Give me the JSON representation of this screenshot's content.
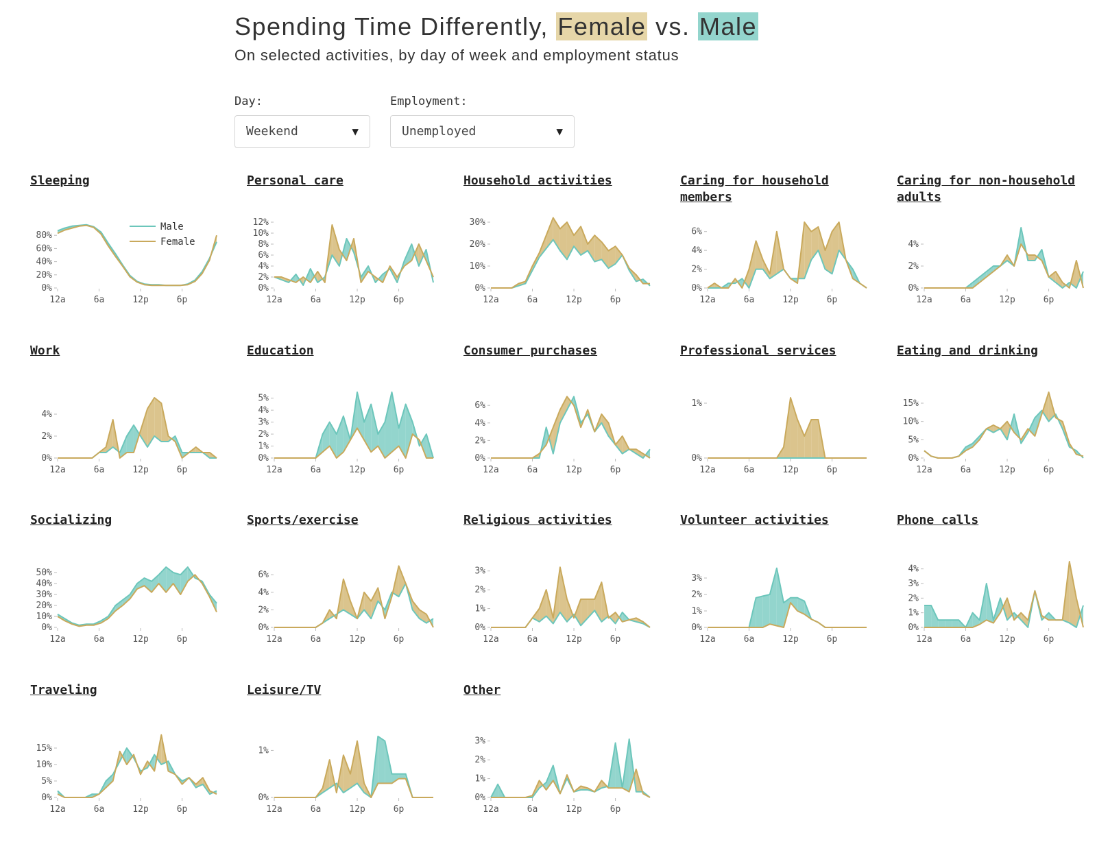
{
  "header": {
    "title_prefix": "Spending Time Differently, ",
    "title_female": "Female",
    "title_vs": " vs. ",
    "title_male": "Male",
    "subtitle": "On selected activities, by day of week and employment status"
  },
  "controls": {
    "day_label": "Day:",
    "day_value": "Weekend",
    "employment_label": "Employment:",
    "employment_value": "Unemployed",
    "arrow": "▼"
  },
  "legend": {
    "male": "Male",
    "female": "Female"
  },
  "colors": {
    "male": "#93d5cd",
    "male_line": "#6cc6bb",
    "female": "#dbc48d",
    "female_line": "#c9a95c"
  },
  "chart_data": [
    {
      "type": "area",
      "title": "Sleeping",
      "x_ticks": [
        "12a",
        "6a",
        "12p",
        "6p"
      ],
      "ylim": [
        0,
        100
      ],
      "y_ticks": [
        0,
        20,
        40,
        60,
        80
      ],
      "tick_suffix": "%",
      "legend": true,
      "male": [
        87,
        91,
        94,
        95,
        96,
        93,
        85,
        68,
        52,
        35,
        19,
        10,
        6,
        5,
        5,
        4,
        4,
        4,
        6,
        12,
        25,
        45,
        70
      ],
      "female": [
        83,
        88,
        91,
        94,
        95,
        92,
        82,
        64,
        48,
        33,
        17,
        9,
        5,
        4,
        4,
        4,
        4,
        4,
        5,
        10,
        22,
        42,
        80
      ]
    },
    {
      "type": "area",
      "title": "Personal care",
      "x_ticks": [
        "12a",
        "6a",
        "12p",
        "6p"
      ],
      "ylim": [
        0,
        12
      ],
      "y_ticks": [
        0,
        2,
        4,
        6,
        8,
        10,
        12
      ],
      "tick_suffix": "%",
      "male": [
        2,
        1.5,
        1,
        2.5,
        0.5,
        3.5,
        1,
        2,
        6,
        4,
        9,
        6.5,
        2,
        4,
        1,
        2.5,
        3.5,
        1,
        5,
        8,
        4,
        7,
        1
      ],
      "female": [
        2,
        2,
        1.5,
        1,
        2,
        1,
        3,
        1,
        11.5,
        7,
        5,
        9,
        1,
        3,
        2,
        1,
        4,
        2,
        4,
        5,
        8,
        5,
        2
      ]
    },
    {
      "type": "area",
      "title": "Household activities",
      "x_ticks": [
        "12a",
        "6a",
        "12p",
        "6p"
      ],
      "ylim": [
        0,
        30
      ],
      "y_ticks": [
        0,
        10,
        20,
        30
      ],
      "tick_suffix": "%",
      "male": [
        0,
        0,
        0,
        0,
        1,
        2,
        8,
        14,
        18,
        22,
        17,
        13,
        19,
        15,
        17,
        12,
        13,
        9,
        11,
        15,
        8,
        3,
        4,
        1
      ],
      "female": [
        0,
        0,
        0,
        0,
        2,
        3,
        10,
        16,
        24,
        32,
        27,
        30,
        24,
        28,
        20,
        24,
        21,
        17,
        19,
        15,
        9,
        6,
        2,
        2
      ]
    },
    {
      "type": "area",
      "title": "Caring for household members",
      "x_ticks": [
        "12a",
        "6a",
        "12p",
        "6p"
      ],
      "ylim": [
        0,
        7
      ],
      "y_ticks": [
        0,
        2,
        4,
        6
      ],
      "tick_suffix": "%",
      "male": [
        0,
        0,
        0,
        0.5,
        0.5,
        1,
        0,
        2,
        2,
        1,
        1.5,
        2,
        1,
        1,
        1,
        3,
        4,
        2,
        1.5,
        4,
        3,
        2,
        0.5,
        0
      ],
      "female": [
        0,
        0.5,
        0,
        0,
        1,
        0,
        2,
        5,
        3,
        1.5,
        6,
        2,
        1,
        0.5,
        7,
        6,
        6.5,
        4,
        6,
        7,
        3,
        1,
        0.5,
        0
      ]
    },
    {
      "type": "area",
      "title": "Caring for non-household adults",
      "x_ticks": [
        "12a",
        "6a",
        "12p",
        "6p"
      ],
      "ylim": [
        0,
        6
      ],
      "y_ticks": [
        0,
        2,
        4
      ],
      "tick_suffix": "%",
      "male": [
        0,
        0,
        0,
        0,
        0,
        0,
        0,
        0.5,
        1,
        1.5,
        2,
        2,
        2.5,
        2,
        5.5,
        2.5,
        2.5,
        3.5,
        1,
        0.5,
        0,
        0.5,
        0,
        1.5
      ],
      "female": [
        0,
        0,
        0,
        0,
        0,
        0,
        0,
        0,
        0.5,
        1,
        1.5,
        2,
        3,
        2,
        4,
        3,
        3,
        2.5,
        1,
        1.5,
        0.5,
        0,
        2.5,
        0
      ]
    },
    {
      "type": "area",
      "title": "Work",
      "x_ticks": [
        "12a",
        "6a",
        "12p",
        "6p"
      ],
      "ylim": [
        0,
        6
      ],
      "y_ticks": [
        0,
        2,
        4
      ],
      "tick_suffix": "%",
      "male": [
        0,
        0,
        0,
        0,
        0,
        0,
        0.5,
        0.5,
        1,
        0.5,
        2,
        3,
        2,
        1,
        2,
        1.5,
        1.5,
        2,
        0.5,
        0.5,
        0.5,
        0.5,
        0,
        0
      ],
      "female": [
        0,
        0,
        0,
        0,
        0,
        0,
        0.5,
        1,
        3.5,
        0,
        0.5,
        0.5,
        2.5,
        4.5,
        5.5,
        5,
        2,
        1.5,
        0,
        0.5,
        1,
        0.5,
        0.5,
        0
      ]
    },
    {
      "type": "area",
      "title": "Education",
      "x_ticks": [
        "12a",
        "6a",
        "12p",
        "6p"
      ],
      "ylim": [
        0,
        5.5
      ],
      "y_ticks": [
        0,
        1,
        2,
        3,
        4,
        5
      ],
      "tick_suffix": "%",
      "male": [
        0,
        0,
        0,
        0,
        0,
        0,
        0,
        2,
        3,
        2,
        3.5,
        1.5,
        5.5,
        3,
        4.5,
        2,
        3,
        5.5,
        2.5,
        4.5,
        3,
        1,
        2,
        0
      ],
      "female": [
        0,
        0,
        0,
        0,
        0,
        0,
        0,
        0.5,
        1,
        0,
        0.5,
        1.5,
        2.5,
        1.5,
        0.5,
        1,
        0,
        0.5,
        1,
        0,
        2,
        1.5,
        0,
        0
      ]
    },
    {
      "type": "area",
      "title": "Consumer purchases",
      "x_ticks": [
        "12a",
        "6a",
        "12p",
        "6p"
      ],
      "ylim": [
        0,
        7.5
      ],
      "y_ticks": [
        0,
        2,
        4,
        6
      ],
      "tick_suffix": "%",
      "male": [
        0,
        0,
        0,
        0,
        0,
        0,
        0,
        0,
        3.5,
        0.5,
        4,
        5.5,
        7,
        4,
        5,
        3,
        4,
        2.5,
        1.5,
        0.5,
        1,
        0.5,
        0,
        1
      ],
      "female": [
        0,
        0,
        0,
        0,
        0,
        0,
        0,
        0.5,
        1.5,
        3.5,
        5.5,
        7,
        6,
        3.5,
        5.5,
        3,
        5,
        4,
        1.5,
        2.5,
        1,
        1,
        0.5,
        0
      ]
    },
    {
      "type": "area",
      "title": "Professional services",
      "x_ticks": [
        "12a",
        "6a",
        "12p",
        "6p"
      ],
      "ylim": [
        0,
        1.2
      ],
      "y_ticks": [
        0,
        1
      ],
      "tick_suffix": "%",
      "male": [
        0,
        0,
        0,
        0,
        0,
        0,
        0,
        0,
        0,
        0,
        0,
        0,
        0,
        0,
        0,
        0,
        0,
        0,
        0,
        0,
        0,
        0,
        0,
        0
      ],
      "female": [
        0,
        0,
        0,
        0,
        0,
        0,
        0,
        0,
        0,
        0,
        0,
        0.2,
        1.1,
        0.7,
        0.4,
        0.7,
        0.7,
        0,
        0,
        0,
        0,
        0,
        0,
        0
      ]
    },
    {
      "type": "area",
      "title": "Eating and drinking",
      "x_ticks": [
        "12a",
        "6a",
        "12p",
        "6p"
      ],
      "ylim": [
        0,
        18
      ],
      "y_ticks": [
        0,
        5,
        10,
        15
      ],
      "tick_suffix": "%",
      "male": [
        2,
        0.5,
        0,
        0,
        0,
        0.5,
        3,
        4,
        6,
        8,
        7,
        8,
        5,
        12,
        4,
        7,
        11,
        13,
        10,
        12,
        8,
        3,
        2,
        0
      ],
      "female": [
        2,
        0.5,
        0,
        0,
        0,
        0.5,
        2,
        3,
        5,
        8,
        9,
        8,
        10,
        7,
        5,
        8,
        6,
        12,
        18,
        11,
        10,
        4,
        1,
        0.5
      ]
    },
    {
      "type": "area",
      "title": "Socializing",
      "x_ticks": [
        "12a",
        "6a",
        "12p",
        "6p"
      ],
      "ylim": [
        0,
        60
      ],
      "y_ticks": [
        0,
        10,
        20,
        30,
        40,
        50
      ],
      "tick_suffix": "%",
      "male": [
        12,
        8,
        4,
        2,
        3,
        3,
        6,
        10,
        20,
        25,
        30,
        40,
        45,
        42,
        48,
        55,
        50,
        48,
        55,
        45,
        42,
        30,
        22
      ],
      "female": [
        10,
        6,
        3,
        1,
        2,
        2,
        4,
        8,
        15,
        20,
        26,
        35,
        38,
        32,
        40,
        32,
        40,
        30,
        42,
        48,
        40,
        28,
        14
      ]
    },
    {
      "type": "area",
      "title": "Sports/exercise",
      "x_ticks": [
        "12a",
        "6a",
        "12p",
        "6p"
      ],
      "ylim": [
        0,
        7.5
      ],
      "y_ticks": [
        0,
        2,
        4,
        6
      ],
      "tick_suffix": "%",
      "male": [
        0,
        0,
        0,
        0,
        0,
        0,
        0,
        0.5,
        1,
        1.5,
        2,
        1.5,
        1,
        2,
        1,
        3,
        2,
        4,
        3.5,
        5,
        2,
        1,
        0.5,
        1
      ],
      "female": [
        0,
        0,
        0,
        0,
        0,
        0,
        0,
        0.5,
        2,
        1,
        5.5,
        3,
        1,
        4,
        3,
        4.5,
        1,
        3.5,
        7,
        5,
        3,
        2,
        1.5,
        0
      ]
    },
    {
      "type": "area",
      "title": "Religious activities",
      "x_ticks": [
        "12a",
        "6a",
        "12p",
        "6p"
      ],
      "ylim": [
        0,
        3.5
      ],
      "y_ticks": [
        0,
        1,
        2,
        3
      ],
      "tick_suffix": "%",
      "male": [
        0,
        0,
        0,
        0,
        0,
        0,
        0.5,
        0.3,
        0.6,
        0.2,
        0.8,
        0.3,
        0.7,
        0.1,
        0.5,
        0.9,
        0.3,
        0.6,
        0.2,
        0.8,
        0.4,
        0.3,
        0.2,
        0
      ],
      "female": [
        0,
        0,
        0,
        0,
        0,
        0,
        0.5,
        1,
        2,
        0.5,
        3.2,
        1.5,
        0.5,
        1.5,
        1.5,
        1.5,
        2.4,
        0.5,
        0.8,
        0.3,
        0.4,
        0.5,
        0.3,
        0
      ]
    },
    {
      "type": "area",
      "title": "Volunteer activities",
      "x_ticks": [
        "12a",
        "6a",
        "12p",
        "6p"
      ],
      "ylim": [
        0,
        4
      ],
      "y_ticks": [
        0,
        1,
        2,
        3
      ],
      "tick_suffix": "%",
      "male": [
        0,
        0,
        0,
        0,
        0,
        0,
        0,
        1.8,
        1.9,
        2,
        3.6,
        1.5,
        1.8,
        1.8,
        1.6,
        0.5,
        0.3,
        0,
        0,
        0,
        0,
        0,
        0,
        0
      ],
      "female": [
        0,
        0,
        0,
        0,
        0,
        0,
        0,
        0,
        0,
        0.2,
        0.1,
        0,
        1.5,
        1,
        0.8,
        0.5,
        0.3,
        0,
        0,
        0,
        0,
        0,
        0,
        0
      ]
    },
    {
      "type": "area",
      "title": "Phone calls",
      "x_ticks": [
        "12a",
        "6a",
        "12p",
        "6p"
      ],
      "ylim": [
        0,
        4.5
      ],
      "y_ticks": [
        0,
        1,
        2,
        3,
        4
      ],
      "tick_suffix": "%",
      "male": [
        1.5,
        1.5,
        0.5,
        0.5,
        0.5,
        0.5,
        0,
        1,
        0.5,
        3,
        0.5,
        2,
        0.5,
        1,
        0.5,
        0,
        2.5,
        0.5,
        1,
        0.5,
        0.5,
        0.3,
        0,
        1.5
      ],
      "female": [
        0,
        0,
        0,
        0,
        0,
        0,
        0,
        0,
        0.2,
        0.5,
        0.3,
        1,
        2,
        0.5,
        1,
        0.5,
        2.5,
        0.8,
        0.5,
        0.5,
        0.5,
        4.5,
        2,
        0
      ]
    },
    {
      "type": "area",
      "title": "Traveling",
      "x_ticks": [
        "12a",
        "6a",
        "12p",
        "6p"
      ],
      "ylim": [
        0,
        20
      ],
      "y_ticks": [
        0,
        5,
        10,
        15
      ],
      "tick_suffix": "%",
      "male": [
        2,
        0,
        0,
        0,
        0,
        1,
        1,
        5,
        7,
        11,
        15,
        12,
        8,
        9,
        13,
        10,
        11,
        7,
        5,
        6,
        3,
        4,
        1,
        2
      ],
      "female": [
        1,
        0,
        0,
        0,
        0,
        0,
        1,
        3,
        5,
        14,
        10,
        13,
        7,
        11,
        8,
        19,
        8,
        7,
        4,
        6,
        4,
        6,
        2,
        1
      ]
    },
    {
      "type": "area",
      "title": "Leisure/TV",
      "x_ticks": [
        "12a",
        "6a",
        "12p",
        "6p"
      ],
      "ylim": [
        0,
        1.4
      ],
      "y_ticks": [
        0,
        1
      ],
      "tick_suffix": "%",
      "male": [
        0,
        0,
        0,
        0,
        0,
        0,
        0,
        0.1,
        0.2,
        0.3,
        0.1,
        0.2,
        0.3,
        0.1,
        0,
        1.3,
        1.2,
        0.5,
        0.5,
        0.5,
        0,
        0,
        0,
        0
      ],
      "female": [
        0,
        0,
        0,
        0,
        0,
        0,
        0,
        0.2,
        0.8,
        0.1,
        0.9,
        0.5,
        1.2,
        0.3,
        0,
        0.3,
        0.3,
        0.3,
        0.4,
        0.4,
        0,
        0,
        0,
        0
      ]
    },
    {
      "type": "area",
      "title": "Other",
      "x_ticks": [
        "12a",
        "6a",
        "12p",
        "6p"
      ],
      "ylim": [
        0,
        3.5
      ],
      "y_ticks": [
        0,
        1,
        2,
        3
      ],
      "tick_suffix": "%",
      "male": [
        0,
        0.7,
        0,
        0,
        0,
        0,
        0,
        0.5,
        0.8,
        1.7,
        0.2,
        1,
        0.3,
        0.4,
        0.4,
        0.3,
        0.5,
        0.6,
        2.9,
        0.5,
        3.1,
        0.3,
        0.3,
        0
      ],
      "female": [
        0,
        0,
        0,
        0,
        0,
        0,
        0.1,
        0.9,
        0.4,
        0.9,
        0.2,
        1.2,
        0.3,
        0.6,
        0.5,
        0.3,
        0.9,
        0.5,
        0.5,
        0.5,
        0.3,
        1.5,
        0.2,
        0
      ]
    }
  ]
}
